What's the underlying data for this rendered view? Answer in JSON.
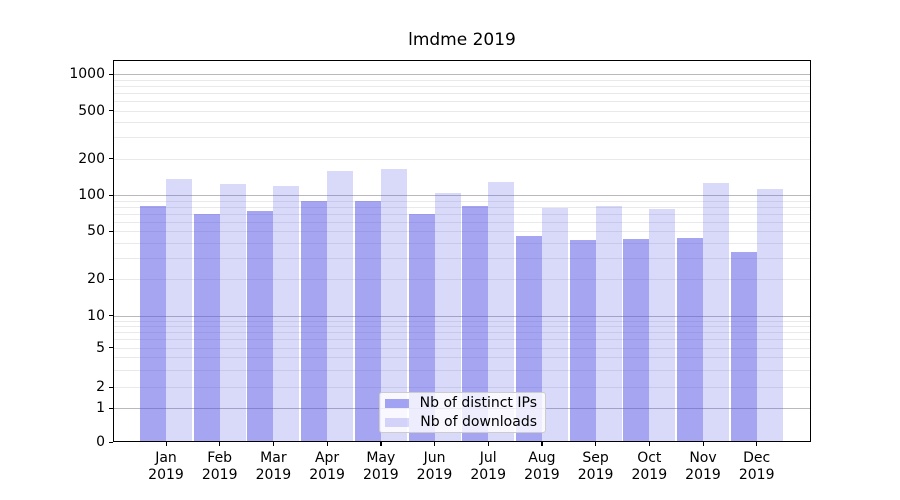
{
  "title": "lmdme 2019",
  "legend": {
    "items": [
      {
        "label": "Nb of distinct IPs"
      },
      {
        "label": "Nb of downloads"
      }
    ]
  },
  "colors": {
    "distinct_ips_bar": "rgba(82,82,230,0.52)",
    "downloads_bar": "rgba(82,82,230,0.22)",
    "major_gridline": "#b9b9bd",
    "minor_gridline": "#e9e9ec",
    "axis": "#000000"
  },
  "chart_data": {
    "type": "bar",
    "title": "lmdme 2019",
    "categories": [
      "Jan",
      "Feb",
      "Mar",
      "Apr",
      "May",
      "Jun",
      "Jul",
      "Aug",
      "Sep",
      "Oct",
      "Nov",
      "Dec"
    ],
    "category_year": "2019",
    "series": [
      {
        "name": "Nb of distinct IPs",
        "values": [
          81,
          69,
          74,
          90,
          89,
          70,
          81,
          46,
          42,
          43,
          44,
          34
        ]
      },
      {
        "name": "Nb of downloads",
        "values": [
          136,
          123,
          119,
          158,
          164,
          103,
          129,
          78,
          81,
          76,
          125,
          112
        ]
      }
    ],
    "xlabel": "",
    "ylabel": "",
    "yscale": "symlog",
    "y_tick_values": [
      0,
      1,
      2,
      5,
      10,
      20,
      50,
      100,
      200,
      500,
      1000
    ],
    "y_tick_labels": [
      "0",
      "1",
      "2",
      "5",
      "10",
      "20",
      "50",
      "100",
      "200",
      "500",
      "1000"
    ],
    "ylim": [
      0,
      1300
    ],
    "grid": true,
    "legend_position": "lower center"
  }
}
